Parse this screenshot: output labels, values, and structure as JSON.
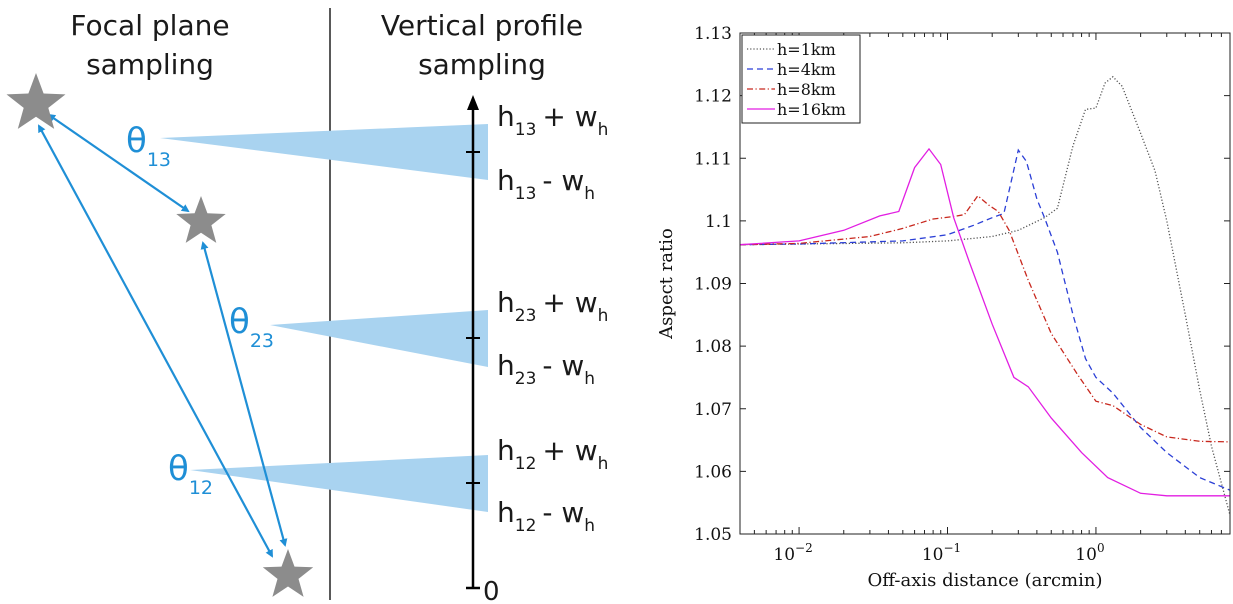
{
  "diagram": {
    "left_title_line1": "Focal plane",
    "left_title_line2": "sampling",
    "right_title_line1": "Vertical profile",
    "right_title_line2": "sampling",
    "thetas": [
      {
        "sym": "θ",
        "sub": "13"
      },
      {
        "sym": "θ",
        "sub": "23"
      },
      {
        "sym": "θ",
        "sub": "12"
      }
    ],
    "height_labels": [
      {
        "h": "h",
        "sub": "13",
        "op": "+ w",
        "wsub": "h"
      },
      {
        "h": "h",
        "sub": "13",
        "op": "- w",
        "wsub": "h"
      },
      {
        "h": "h",
        "sub": "23",
        "op": "+ w",
        "wsub": "h"
      },
      {
        "h": "h",
        "sub": "23",
        "op": "- w",
        "wsub": "h"
      },
      {
        "h": "h",
        "sub": "12",
        "op": "+ w",
        "wsub": "h"
      },
      {
        "h": "h",
        "sub": "12",
        "op": "- w",
        "wsub": "h"
      }
    ],
    "axis_zero": "0",
    "colors": {
      "star": "#8c8c8c",
      "arrow": "#1f8fd6",
      "wedge": "#a9d3f0"
    }
  },
  "chart_data": {
    "type": "line",
    "title": "",
    "xlabel": "Off-axis distance (arcmin)",
    "ylabel": "Aspect ratio",
    "xscale": "log",
    "xlim": [
      0.004,
      8
    ],
    "ylim": [
      1.05,
      1.13
    ],
    "yticks": [
      "1.05",
      "1.06",
      "1.07",
      "1.08",
      "1.09",
      "1.1",
      "1.11",
      "1.12",
      "1.13"
    ],
    "xtick_bases": [
      "10",
      "10",
      "10"
    ],
    "xtick_exps": [
      "−2",
      "−1",
      "0"
    ],
    "legend_position": "top-left",
    "series": [
      {
        "name": "h=1km",
        "color": "#555555",
        "dash": "1.2,2",
        "points": [
          [
            0.004,
            1.0962
          ],
          [
            0.01,
            1.0963
          ],
          [
            0.05,
            1.0965
          ],
          [
            0.1,
            1.0968
          ],
          [
            0.2,
            1.0975
          ],
          [
            0.3,
            1.0985
          ],
          [
            0.45,
            1.1005
          ],
          [
            0.55,
            1.102
          ],
          [
            0.7,
            1.112
          ],
          [
            0.85,
            1.1178
          ],
          [
            1.0,
            1.118
          ],
          [
            1.15,
            1.122
          ],
          [
            1.3,
            1.123
          ],
          [
            1.5,
            1.1215
          ],
          [
            2.0,
            1.114
          ],
          [
            2.5,
            1.108
          ],
          [
            3.0,
            1.1
          ],
          [
            4.0,
            1.085
          ],
          [
            5.0,
            1.073
          ],
          [
            6.0,
            1.064
          ],
          [
            8.0,
            1.053
          ]
        ]
      },
      {
        "name": "h=4km",
        "color": "#2b3fd6",
        "dash": "6,4",
        "points": [
          [
            0.004,
            1.0962
          ],
          [
            0.01,
            1.0963
          ],
          [
            0.05,
            1.0968
          ],
          [
            0.1,
            1.0978
          ],
          [
            0.15,
            1.0993
          ],
          [
            0.2,
            1.1005
          ],
          [
            0.24,
            1.1012
          ],
          [
            0.27,
            1.1065
          ],
          [
            0.3,
            1.1113
          ],
          [
            0.34,
            1.1095
          ],
          [
            0.4,
            1.1035
          ],
          [
            0.45,
            1.1005
          ],
          [
            0.55,
            1.095
          ],
          [
            0.7,
            1.085
          ],
          [
            0.85,
            1.078
          ],
          [
            1.0,
            1.075
          ],
          [
            1.3,
            1.0725
          ],
          [
            2.0,
            1.067
          ],
          [
            3.0,
            1.063
          ],
          [
            5.0,
            1.059
          ],
          [
            8.0,
            1.057
          ]
        ]
      },
      {
        "name": "h=8km",
        "color": "#c8281e",
        "dash": "6,2.5,1.2,2.5",
        "points": [
          [
            0.004,
            1.0962
          ],
          [
            0.01,
            1.0964
          ],
          [
            0.03,
            1.0975
          ],
          [
            0.05,
            1.0988
          ],
          [
            0.08,
            1.1003
          ],
          [
            0.11,
            1.1007
          ],
          [
            0.13,
            1.101
          ],
          [
            0.16,
            1.104
          ],
          [
            0.19,
            1.1025
          ],
          [
            0.22,
            1.1015
          ],
          [
            0.26,
            1.0985
          ],
          [
            0.35,
            1.0905
          ],
          [
            0.5,
            1.082
          ],
          [
            0.75,
            1.0755
          ],
          [
            1.0,
            1.0712
          ],
          [
            1.3,
            1.0705
          ],
          [
            2.0,
            1.0675
          ],
          [
            3.0,
            1.0655
          ],
          [
            5.0,
            1.0648
          ],
          [
            8.0,
            1.0647
          ]
        ]
      },
      {
        "name": "h=16km",
        "color": "#e21ee2",
        "dash": "",
        "points": [
          [
            0.004,
            1.0962
          ],
          [
            0.01,
            1.0968
          ],
          [
            0.02,
            1.0985
          ],
          [
            0.035,
            1.1008
          ],
          [
            0.047,
            1.1015
          ],
          [
            0.06,
            1.1085
          ],
          [
            0.075,
            1.1115
          ],
          [
            0.09,
            1.109
          ],
          [
            0.11,
            1.1005
          ],
          [
            0.14,
            1.0935
          ],
          [
            0.2,
            1.0835
          ],
          [
            0.28,
            1.075
          ],
          [
            0.35,
            1.0735
          ],
          [
            0.5,
            1.0685
          ],
          [
            0.8,
            1.063
          ],
          [
            1.2,
            1.059
          ],
          [
            2.0,
            1.0565
          ],
          [
            3.0,
            1.0561
          ],
          [
            8.0,
            1.0561
          ]
        ]
      }
    ]
  }
}
